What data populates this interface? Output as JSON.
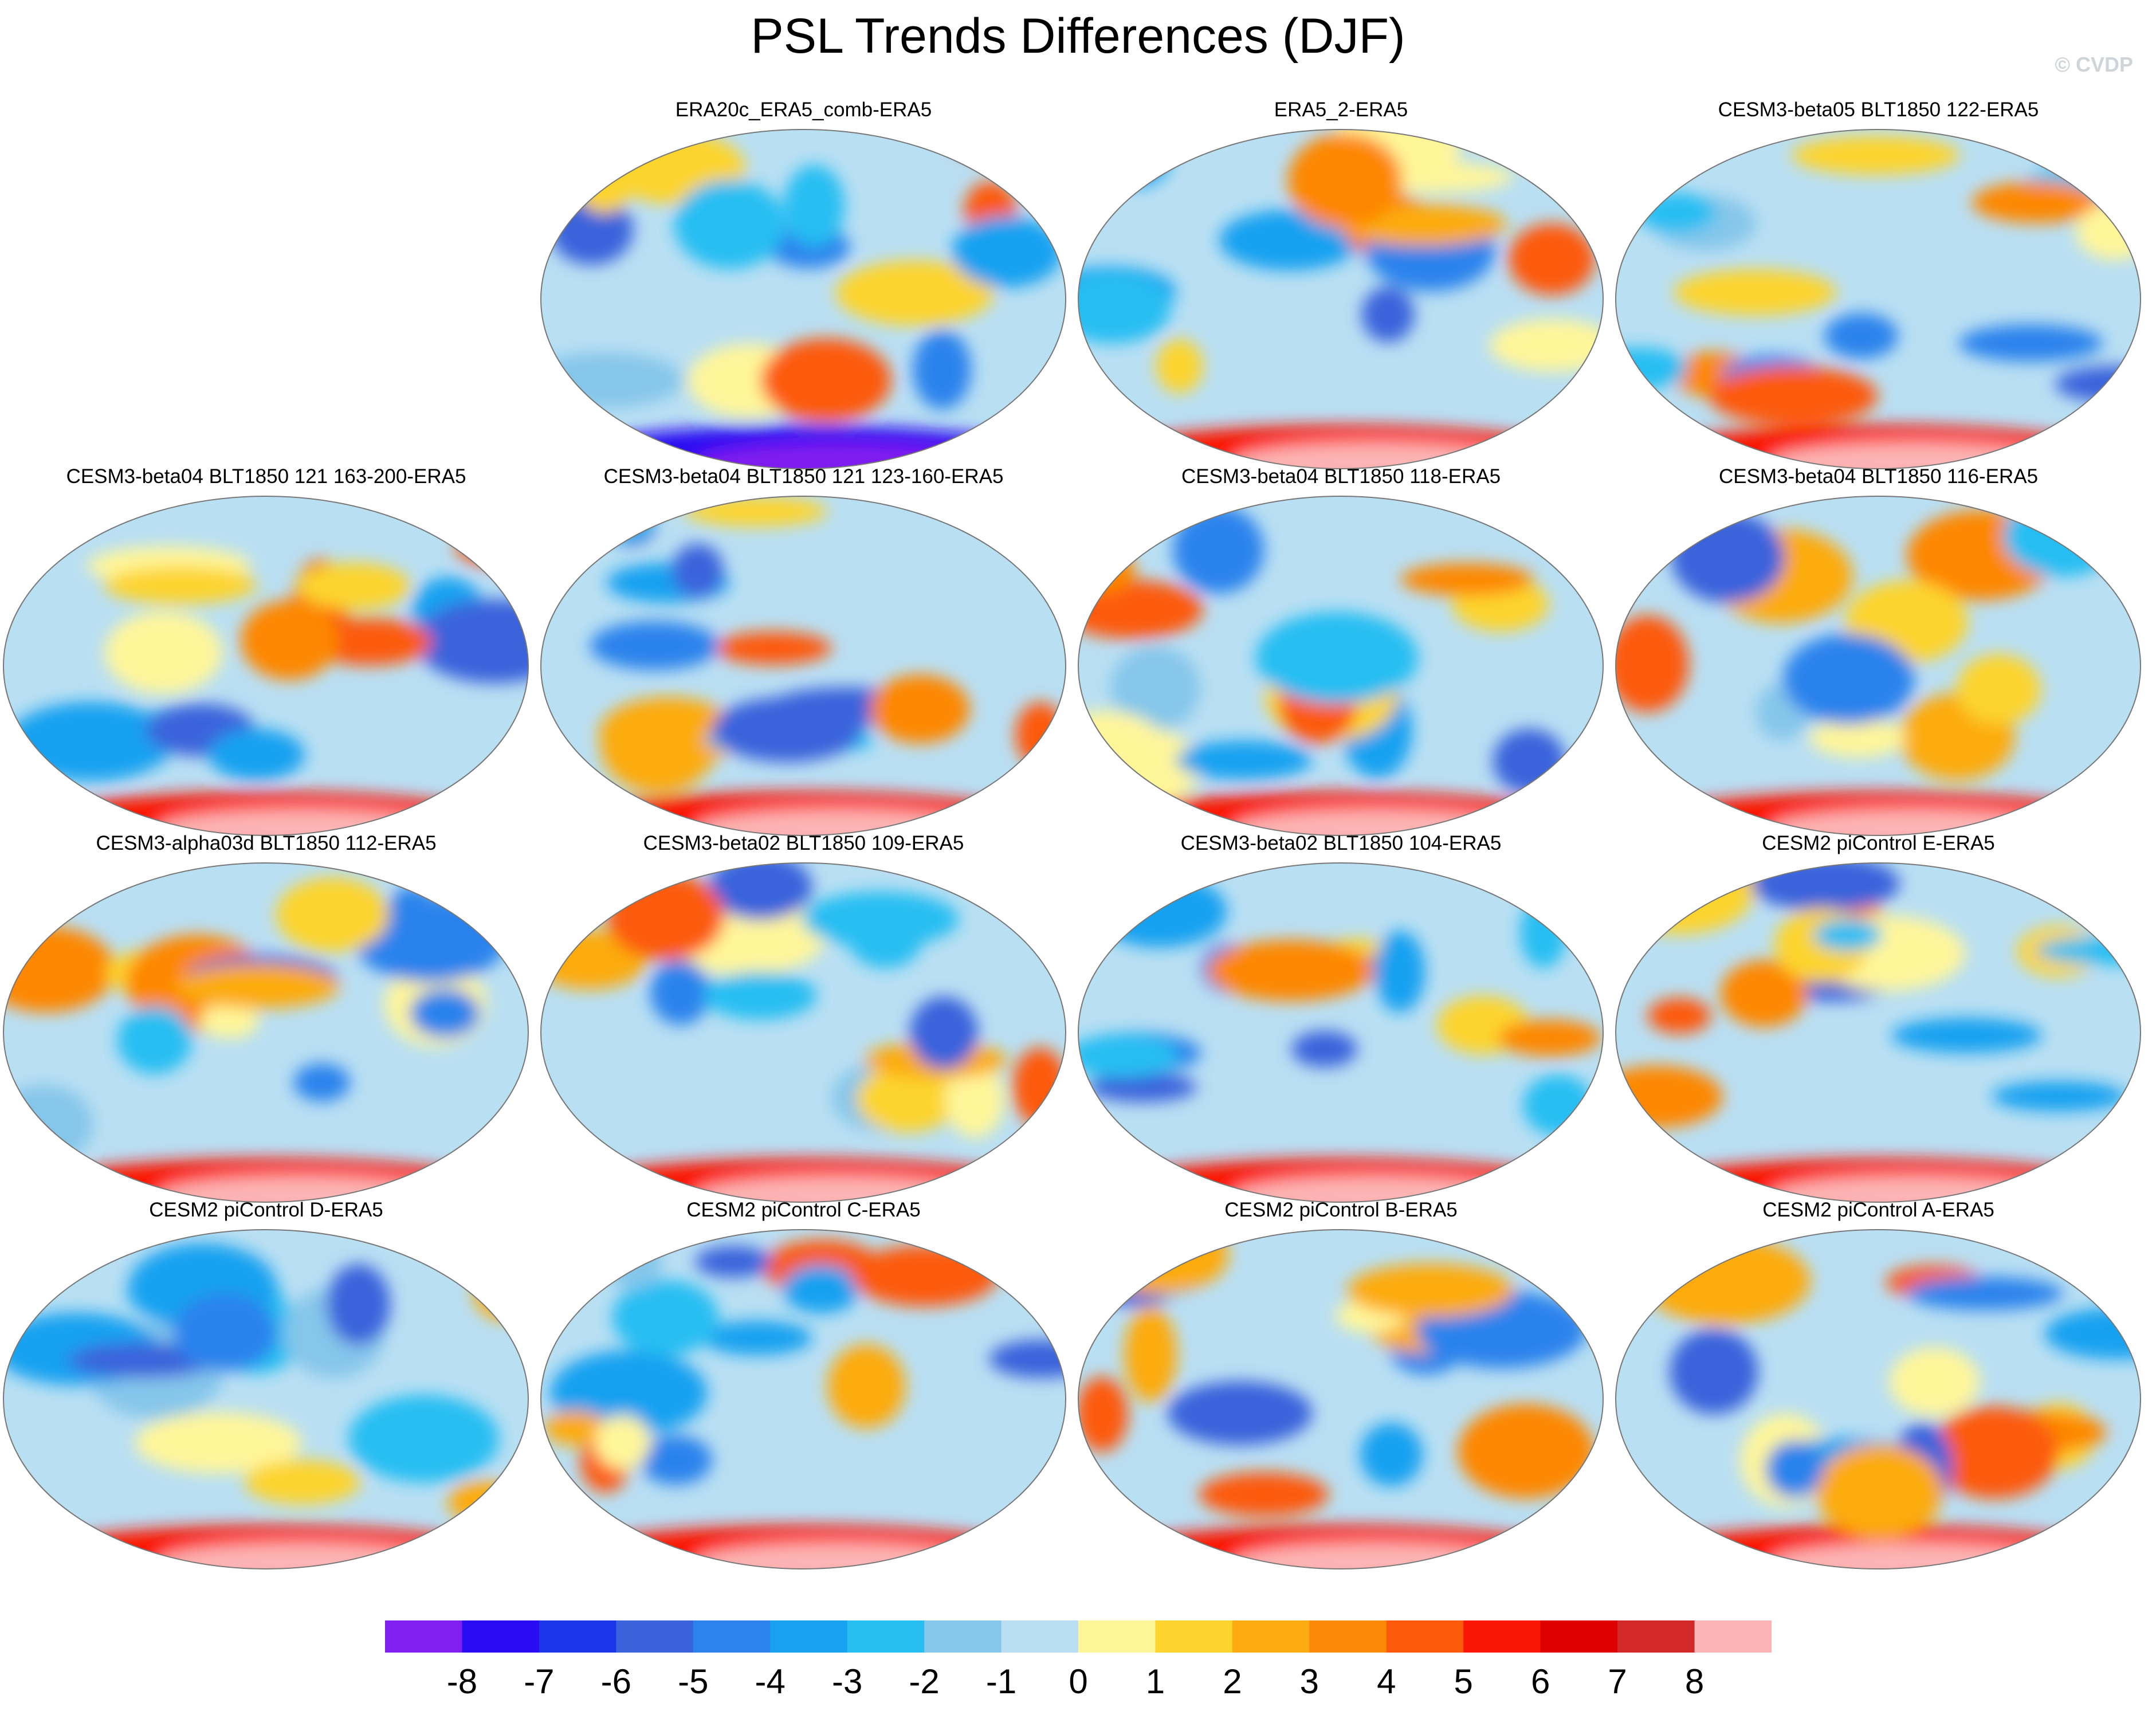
{
  "title": "PSL Trends Differences (DJF)",
  "credit": "© CVDP",
  "panels": [
    {
      "label": "ERA20c_ERA5_comb-ERA5"
    },
    {
      "label": "ERA5_2-ERA5"
    },
    {
      "label": "CESM3-beta05 BLT1850 122-ERA5"
    },
    {
      "label": "CESM3-beta04 BLT1850 121 163-200-ERA5"
    },
    {
      "label": "CESM3-beta04 BLT1850 121 123-160-ERA5"
    },
    {
      "label": "CESM3-beta04 BLT1850 118-ERA5"
    },
    {
      "label": "CESM3-beta04 BLT1850 116-ERA5"
    },
    {
      "label": "CESM3-alpha03d BLT1850 112-ERA5"
    },
    {
      "label": "CESM3-beta02 BLT1850 109-ERA5"
    },
    {
      "label": "CESM3-beta02 BLT1850 104-ERA5"
    },
    {
      "label": "CESM2 piControl E-ERA5"
    },
    {
      "label": "CESM2 piControl D-ERA5"
    },
    {
      "label": "CESM2 piControl C-ERA5"
    },
    {
      "label": "CESM2 piControl B-ERA5"
    },
    {
      "label": "CESM2 piControl A-ERA5"
    }
  ],
  "colorbar": {
    "ticks": [
      "-8",
      "-7",
      "-6",
      "-5",
      "-4",
      "-3",
      "-2",
      "-1",
      "0",
      "1",
      "2",
      "3",
      "4",
      "5",
      "6",
      "7",
      "8"
    ],
    "colors": [
      "#7f1ff0",
      "#2a0cf2",
      "#1b36e8",
      "#3a63db",
      "#2c83ec",
      "#17a1f0",
      "#27bef2",
      "#85c6ea",
      "#b9dff3",
      "#fff69a",
      "#fcd42d",
      "#fcab10",
      "#fd8706",
      "#fc5a0a",
      "#fb1505",
      "#dc0000",
      "#d22a28",
      "#fcb4b4"
    ]
  }
}
